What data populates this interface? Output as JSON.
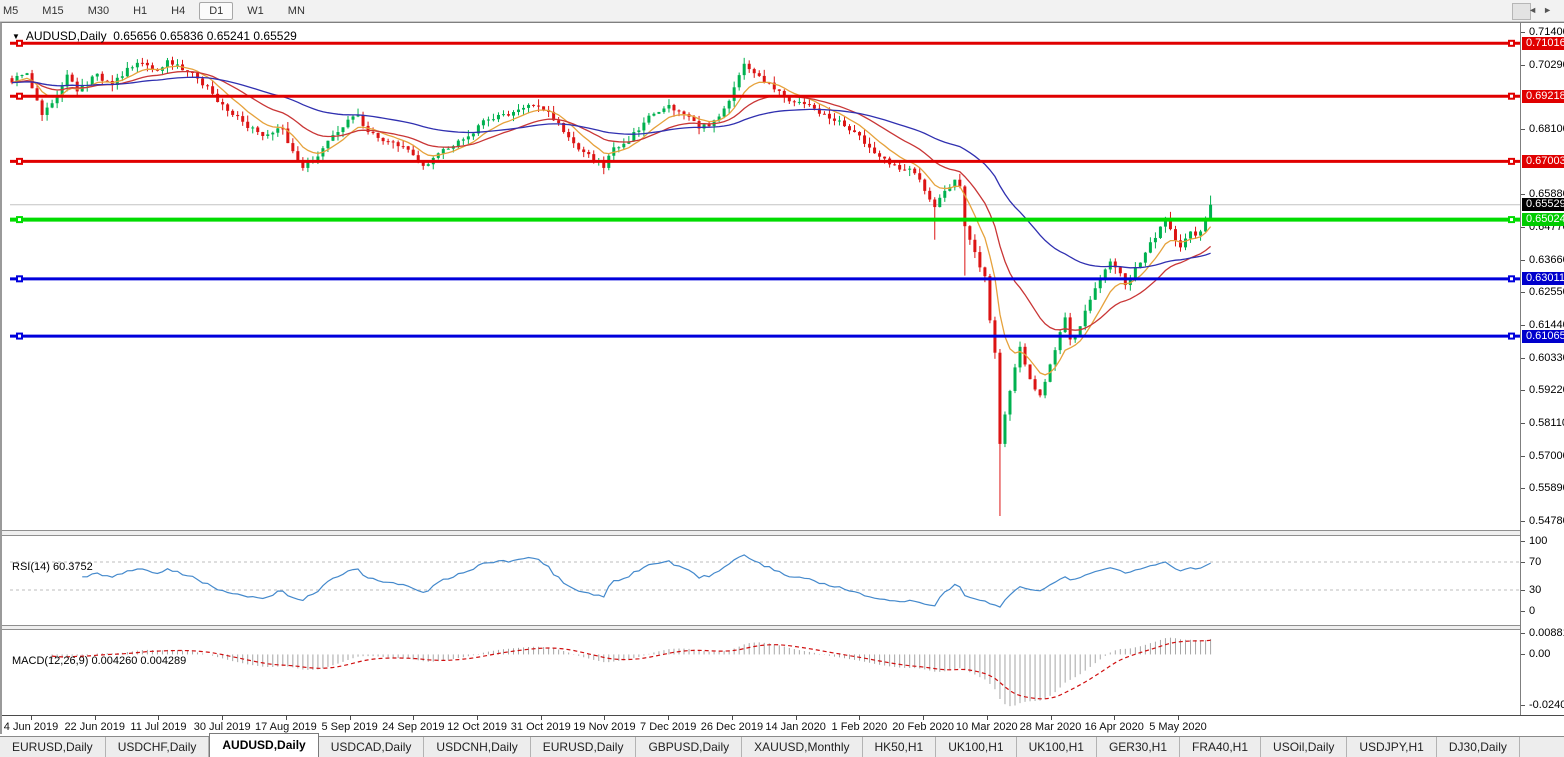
{
  "toolbar": {
    "timeframes": [
      {
        "label": "M5"
      },
      {
        "label": "M15"
      },
      {
        "label": "M30"
      },
      {
        "label": "H1"
      },
      {
        "label": "H4"
      },
      {
        "label": "D1",
        "active": true
      },
      {
        "label": "W1"
      },
      {
        "label": "MN"
      }
    ]
  },
  "chart": {
    "title": {
      "caret": "▼",
      "symbol": "AUDUSD,Daily",
      "ohlc": "0.65656 0.65836 0.65241 0.65529"
    },
    "rsi_label": "RSI(14) 60.3752",
    "macd_label": "MACD(12,26,9) 0.004260 0.004289"
  },
  "chart_data": {
    "type": "candlestick",
    "symbol": "AUDUSD",
    "timeframe": "Daily",
    "current_ohlc": {
      "open": 0.65656,
      "high": 0.65836,
      "low": 0.65241,
      "close": 0.65529
    },
    "y_axis": {
      "min": 0.5478,
      "max": 0.714,
      "tick_step": 0.0111,
      "labels": [
        "0.71400",
        "0.70290",
        "0.68100",
        "0.65880",
        "0.64770",
        "0.63660",
        "0.62550",
        "0.61440",
        "0.60330",
        "0.59220",
        "0.58110",
        "0.57000",
        "0.55890",
        "0.54780"
      ]
    },
    "badges": [
      {
        "text": "0.71016",
        "value": 0.71016,
        "bg": "#e00000",
        "fg": "#ffffff"
      },
      {
        "text": "0.69218",
        "value": 0.69218,
        "bg": "#e00000",
        "fg": "#ffffff"
      },
      {
        "text": "0.67003",
        "value": 0.67003,
        "bg": "#e00000",
        "fg": "#ffffff"
      },
      {
        "text": "0.65529",
        "value": 0.65529,
        "bg": "#000000",
        "fg": "#ffffff"
      },
      {
        "text": "0.65024",
        "value": 0.65024,
        "bg": "#00cc00",
        "fg": "#ffffff"
      },
      {
        "text": "0.63011",
        "value": 0.63011,
        "bg": "#0000cc",
        "fg": "#ffffff"
      },
      {
        "text": "0.61065",
        "value": 0.61065,
        "bg": "#0000cc",
        "fg": "#ffffff"
      }
    ],
    "horizontal_lines": [
      {
        "value": 0.71016,
        "color": "#e00000",
        "width": 3
      },
      {
        "value": 0.69218,
        "color": "#e00000",
        "width": 3
      },
      {
        "value": 0.67003,
        "color": "#e00000",
        "width": 3
      },
      {
        "value": 0.65024,
        "color": "#00dc00",
        "width": 4
      },
      {
        "value": 0.63011,
        "color": "#0000dc",
        "width": 3
      },
      {
        "value": 0.61065,
        "color": "#0000dc",
        "width": 3
      }
    ],
    "bid_line": {
      "value": 0.65529,
      "color": "#c4c4c4"
    },
    "candle_count": 240,
    "bull_color": "#00b14f",
    "bear_color": "#dc1414",
    "close_anchors": [
      [
        0,
        0.6968
      ],
      [
        3,
        0.7
      ],
      [
        6,
        0.6858
      ],
      [
        9,
        0.692
      ],
      [
        11,
        0.6995
      ],
      [
        13,
        0.6938
      ],
      [
        17,
        0.6998
      ],
      [
        20,
        0.696
      ],
      [
        23,
        0.7018
      ],
      [
        26,
        0.7035
      ],
      [
        29,
        0.7008
      ],
      [
        31,
        0.7044
      ],
      [
        34,
        0.701
      ],
      [
        37,
        0.6982
      ],
      [
        40,
        0.693
      ],
      [
        43,
        0.6872
      ],
      [
        46,
        0.6835
      ],
      [
        49,
        0.68
      ],
      [
        51,
        0.6792
      ],
      [
        54,
        0.6812
      ],
      [
        56,
        0.6735
      ],
      [
        58,
        0.6678
      ],
      [
        60,
        0.6705
      ],
      [
        62,
        0.6745
      ],
      [
        65,
        0.68
      ],
      [
        67,
        0.6842
      ],
      [
        69,
        0.6858
      ],
      [
        71,
        0.68
      ],
      [
        73,
        0.678
      ],
      [
        75,
        0.6768
      ],
      [
        77,
        0.6752
      ],
      [
        79,
        0.674
      ],
      [
        81,
        0.6702
      ],
      [
        82,
        0.6685
      ],
      [
        84,
        0.6712
      ],
      [
        86,
        0.6742
      ],
      [
        88,
        0.6752
      ],
      [
        90,
        0.6775
      ],
      [
        92,
        0.6795
      ],
      [
        94,
        0.684
      ],
      [
        97,
        0.6858
      ],
      [
        100,
        0.6868
      ],
      [
        102,
        0.6882
      ],
      [
        104,
        0.689
      ],
      [
        106,
        0.6875
      ],
      [
        108,
        0.684
      ],
      [
        110,
        0.68
      ],
      [
        112,
        0.6762
      ],
      [
        114,
        0.6732
      ],
      [
        116,
        0.67
      ],
      [
        118,
        0.6678
      ],
      [
        120,
        0.6748
      ],
      [
        122,
        0.676
      ],
      [
        124,
        0.68
      ],
      [
        126,
        0.6832
      ],
      [
        128,
        0.6862
      ],
      [
        130,
        0.688
      ],
      [
        131,
        0.6892
      ],
      [
        133,
        0.687
      ],
      [
        135,
        0.6852
      ],
      [
        137,
        0.6812
      ],
      [
        139,
        0.682
      ],
      [
        140,
        0.684
      ],
      [
        142,
        0.688
      ],
      [
        144,
        0.6952
      ],
      [
        146,
        0.7032
      ],
      [
        148,
        0.7
      ],
      [
        150,
        0.6968
      ],
      [
        152,
        0.6945
      ],
      [
        154,
        0.6918
      ],
      [
        156,
        0.6902
      ],
      [
        158,
        0.6895
      ],
      [
        160,
        0.688
      ],
      [
        162,
        0.6862
      ],
      [
        164,
        0.6838
      ],
      [
        166,
        0.682
      ],
      [
        168,
        0.68
      ],
      [
        170,
        0.676
      ],
      [
        172,
        0.6728
      ],
      [
        174,
        0.671
      ],
      [
        176,
        0.6688
      ],
      [
        178,
        0.6672
      ],
      [
        180,
        0.666
      ],
      [
        182,
        0.66
      ],
      [
        184,
        0.6545
      ],
      [
        186,
        0.66
      ],
      [
        188,
        0.6638
      ],
      [
        189,
        0.6615
      ],
      [
        190,
        0.648
      ],
      [
        192,
        0.6392
      ],
      [
        193,
        0.634
      ],
      [
        194,
        0.631
      ],
      [
        195,
        0.616
      ],
      [
        196,
        0.605
      ],
      [
        197,
        0.574
      ],
      [
        198,
        0.584
      ],
      [
        199,
        0.592
      ],
      [
        200,
        0.6
      ],
      [
        201,
        0.607
      ],
      [
        202,
        0.601
      ],
      [
        203,
        0.596
      ],
      [
        205,
        0.5905
      ],
      [
        207,
        0.601
      ],
      [
        209,
        0.612
      ],
      [
        210,
        0.617
      ],
      [
        211,
        0.6095
      ],
      [
        213,
        0.614
      ],
      [
        215,
        0.623
      ],
      [
        217,
        0.63
      ],
      [
        219,
        0.636
      ],
      [
        220,
        0.634
      ],
      [
        221,
        0.632
      ],
      [
        222,
        0.628
      ],
      [
        224,
        0.634
      ],
      [
        226,
        0.639
      ],
      [
        228,
        0.644
      ],
      [
        230,
        0.6508
      ],
      [
        231,
        0.647
      ],
      [
        232,
        0.6432
      ],
      [
        233,
        0.6408
      ],
      [
        234,
        0.6438
      ],
      [
        235,
        0.6462
      ],
      [
        236,
        0.6448
      ],
      [
        237,
        0.6462
      ],
      [
        238,
        0.6505
      ],
      [
        239,
        0.65529
      ]
    ],
    "wick_overrides": [
      {
        "i": 58,
        "low": 0.6677
      },
      {
        "i": 118,
        "low": 0.667
      },
      {
        "i": 146,
        "high": 0.704
      },
      {
        "i": 184,
        "low": 0.6434
      },
      {
        "i": 190,
        "low": 0.6312
      },
      {
        "i": 195,
        "low": 0.6305
      },
      {
        "i": 197,
        "low": 0.5495
      },
      {
        "i": 239,
        "high": 0.6584,
        "low": 0.6524
      }
    ],
    "noise": 0.0012,
    "wick": 0.0022,
    "moving_averages": [
      {
        "period": 8,
        "color": "#e6a23c"
      },
      {
        "period": 21,
        "color": "#c93636"
      },
      {
        "period": 55,
        "color": "#3030b0"
      }
    ],
    "indicators": [
      {
        "name": "RSI",
        "period": 14,
        "current": 60.3752,
        "color": "#4489cc",
        "levels": [
          70,
          30
        ],
        "axis_labels": [
          {
            "text": "100",
            "value": 100
          },
          {
            "text": "70",
            "value": 70
          },
          {
            "text": "30",
            "value": 30
          },
          {
            "text": "0",
            "value": 0
          }
        ]
      },
      {
        "name": "MACD",
        "params": [
          12,
          26,
          9
        ],
        "current_macd": 0.00426,
        "current_signal": 0.004289,
        "histogram_color": "#a6a6a6",
        "signal_color": "#d01010",
        "axis_labels": [
          {
            "text": "0.008815",
            "value": 0.008815
          },
          {
            "text": "0.00",
            "value": 0
          },
          {
            "text": "-0.024082",
            "value": -0.024082
          }
        ]
      }
    ],
    "x_labels": [
      "4 Jun 2019",
      "22 Jun 2019",
      "11 Jul 2019",
      "30 Jul 2019",
      "17 Aug 2019",
      "5 Sep 2019",
      "24 Sep 2019",
      "12 Oct 2019",
      "31 Oct 2019",
      "19 Nov 2019",
      "7 Dec 2019",
      "26 Dec 2019",
      "14 Jan 2020",
      "1 Feb 2020",
      "20 Feb 2020",
      "10 Mar 2020",
      "28 Mar 2020",
      "16 Apr 2020",
      "5 May 2020"
    ]
  },
  "tabs": {
    "items": [
      {
        "label": "EURUSD,Daily"
      },
      {
        "label": "USDCHF,Daily"
      },
      {
        "label": "AUDUSD,Daily",
        "active": true
      },
      {
        "label": "USDCAD,Daily"
      },
      {
        "label": "USDCNH,Daily"
      },
      {
        "label": "EURUSD,Daily"
      },
      {
        "label": "GBPUSD,Daily"
      },
      {
        "label": "XAUUSD,Monthly"
      },
      {
        "label": "HK50,H1"
      },
      {
        "label": "UK100,H1"
      },
      {
        "label": "UK100,H1"
      },
      {
        "label": "GER30,H1"
      },
      {
        "label": "FRA40,H1"
      },
      {
        "label": "USOil,Daily"
      },
      {
        "label": "USDJPY,H1"
      },
      {
        "label": "DJ30,Daily"
      }
    ],
    "arrows": "◄►"
  }
}
